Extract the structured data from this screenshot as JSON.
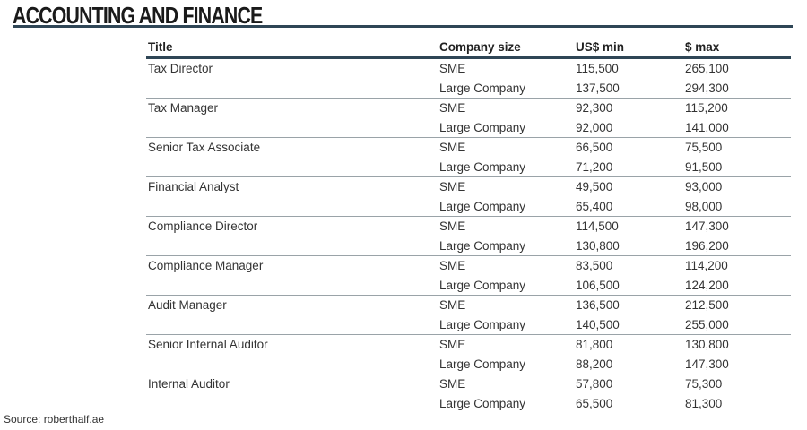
{
  "header": {
    "title": "ACCOUNTING AND FINANCE"
  },
  "table": {
    "columns": [
      "Title",
      "Company size",
      "US$ min",
      "$ max"
    ],
    "groups": [
      {
        "title": "Tax Director",
        "rows": [
          [
            "SME",
            "115,500",
            "265,100"
          ],
          [
            "Large Company",
            "137,500",
            "294,300"
          ]
        ]
      },
      {
        "title": "Tax Manager",
        "rows": [
          [
            "SME",
            "92,300",
            "115,200"
          ],
          [
            "Large Company",
            "92,000",
            "141,000"
          ]
        ]
      },
      {
        "title": "Senior Tax Associate",
        "rows": [
          [
            "SME",
            "66,500",
            "75,500"
          ],
          [
            "Large Company",
            "71,200",
            "91,500"
          ]
        ]
      },
      {
        "title": "Financial Analyst",
        "rows": [
          [
            "SME",
            "49,500",
            "93,000"
          ],
          [
            "Large Company",
            "65,400",
            "98,000"
          ]
        ]
      },
      {
        "title": "Compliance Director",
        "rows": [
          [
            "SME",
            "114,500",
            "147,300"
          ],
          [
            "Large Company",
            "130,800",
            "196,200"
          ]
        ]
      },
      {
        "title": "Compliance Manager",
        "rows": [
          [
            "SME",
            "83,500",
            "114,200"
          ],
          [
            "Large Company",
            "106,500",
            "124,200"
          ]
        ]
      },
      {
        "title": "Audit Manager",
        "rows": [
          [
            "SME",
            "136,500",
            "212,500"
          ],
          [
            "Large Company",
            "140,500",
            "255,000"
          ]
        ]
      },
      {
        "title": "Senior Internal Auditor",
        "rows": [
          [
            "SME",
            "81,800",
            "130,800"
          ],
          [
            "Large Company",
            "88,200",
            "147,300"
          ]
        ]
      },
      {
        "title": "Internal Auditor",
        "rows": [
          [
            "SME",
            "57,800",
            "75,300"
          ],
          [
            "Large Company",
            "65,500",
            "81,300"
          ]
        ]
      }
    ]
  },
  "footer": {
    "source": "Source: roberthalf.ae"
  }
}
